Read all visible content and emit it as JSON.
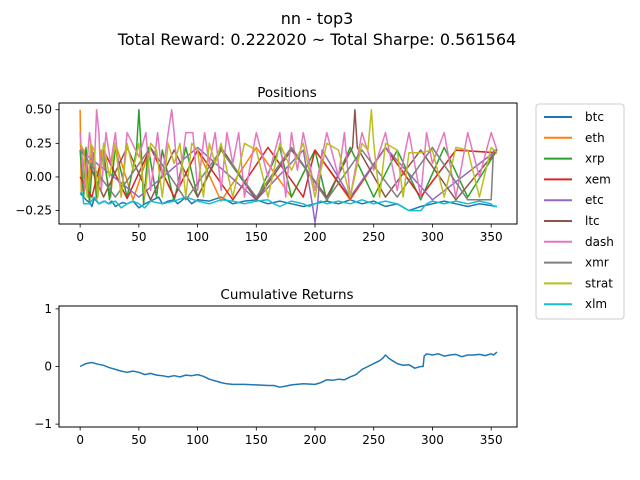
{
  "figure": {
    "title_line1": "nn - top3",
    "title_line2": "Total Reward: 0.222020 ~ Total Sharpe: 0.561564"
  },
  "chart_data": [
    {
      "type": "line",
      "title": "Positions",
      "xlabel": "",
      "ylabel": "",
      "xlim": [
        -18,
        372
      ],
      "ylim": [
        -0.35,
        0.55
      ],
      "xticks": [
        0,
        50,
        100,
        150,
        200,
        250,
        300,
        350
      ],
      "yticks": [
        -0.25,
        0.0,
        0.25,
        0.5
      ],
      "ytick_labels": [
        "−0.25",
        "0.00",
        "0.25",
        "0.50"
      ],
      "grid": false,
      "legend": "outside-right",
      "series": [
        {
          "name": "btc",
          "color": "#1f77b4",
          "x": [
            0,
            2,
            5,
            9,
            10,
            12,
            16,
            21,
            24,
            27,
            30,
            36,
            40,
            45,
            50,
            55,
            60,
            67,
            70,
            75,
            80,
            83,
            86,
            90,
            95,
            100,
            110,
            120,
            130,
            140,
            150,
            160,
            170,
            180,
            190,
            200,
            210,
            220,
            230,
            240,
            250,
            260,
            270,
            280,
            290,
            300,
            310,
            320,
            330,
            340,
            355
          ],
          "y": [
            -0.12,
            -0.14,
            -0.17,
            -0.2,
            -0.22,
            -0.16,
            -0.2,
            -0.18,
            -0.2,
            -0.18,
            -0.22,
            -0.19,
            -0.2,
            -0.18,
            -0.23,
            -0.2,
            -0.18,
            -0.15,
            -0.2,
            -0.18,
            -0.17,
            -0.2,
            -0.18,
            -0.15,
            -0.2,
            -0.17,
            -0.18,
            -0.15,
            -0.2,
            -0.18,
            -0.17,
            -0.2,
            -0.18,
            -0.2,
            -0.22,
            -0.2,
            -0.18,
            -0.2,
            -0.17,
            -0.2,
            -0.18,
            -0.22,
            -0.2,
            -0.25,
            -0.22,
            -0.2,
            -0.18,
            -0.2,
            -0.22,
            -0.2,
            -0.22
          ]
        },
        {
          "name": "eth",
          "color": "#ff7f0e",
          "x": [
            0,
            1,
            4,
            7,
            10,
            14,
            18,
            26,
            30,
            45,
            60,
            80,
            100,
            120,
            150,
            180,
            200,
            230,
            260,
            290,
            320,
            355
          ],
          "y": [
            0.5,
            -0.12,
            0.2,
            -0.15,
            0.22,
            -0.18,
            0.2,
            -0.15,
            0.25,
            -0.17,
            0.22,
            -0.15,
            0.2,
            -0.18,
            0.22,
            -0.15,
            0.2,
            -0.17,
            0.22,
            -0.15,
            0.2,
            0.18
          ]
        },
        {
          "name": "xrp",
          "color": "#2ca02c",
          "x": [
            0,
            3,
            5,
            8,
            11,
            14,
            20,
            25,
            30,
            40,
            48,
            50,
            52,
            54,
            58,
            65,
            70,
            80,
            90,
            100,
            120,
            150,
            170,
            180,
            200,
            210,
            230,
            250,
            270,
            290,
            310,
            330,
            355
          ],
          "y": [
            0.2,
            -0.15,
            0.22,
            -0.2,
            0.18,
            -0.15,
            0.2,
            -0.17,
            0.22,
            -0.15,
            0.2,
            0.5,
            0.2,
            -0.2,
            0.22,
            -0.15,
            0.2,
            -0.18,
            0.22,
            -0.15,
            0.2,
            -0.17,
            0.22,
            -0.15,
            0.2,
            -0.18,
            0.22,
            -0.15,
            0.2,
            -0.17,
            0.22,
            -0.15,
            0.2
          ]
        },
        {
          "name": "xem",
          "color": "#d62728",
          "x": [
            0,
            10,
            20,
            40,
            60,
            80,
            100,
            130,
            160,
            190,
            200,
            230,
            260,
            290,
            320,
            355
          ],
          "y": [
            0.0,
            -0.15,
            0.2,
            -0.16,
            0.22,
            -0.15,
            0.2,
            -0.17,
            0.22,
            -0.15,
            0.2,
            -0.16,
            0.22,
            -0.15,
            0.2,
            0.18
          ]
        },
        {
          "name": "etc",
          "color": "#9467bd",
          "x": [
            0,
            50,
            100,
            150,
            190,
            198,
            200,
            202,
            206,
            230,
            260,
            300,
            355
          ],
          "y": [
            0.2,
            -0.15,
            0.22,
            -0.17,
            0.2,
            -0.22,
            -0.34,
            -0.22,
            0.2,
            -0.15,
            0.22,
            -0.17,
            0.2
          ]
        },
        {
          "name": "ltc",
          "color": "#8c564b",
          "x": [
            0,
            20,
            40,
            60,
            80,
            100,
            120,
            150,
            180,
            210,
            232,
            234,
            236,
            260,
            290,
            320,
            355
          ],
          "y": [
            0.25,
            -0.15,
            0.22,
            -0.17,
            0.2,
            -0.15,
            0.22,
            -0.17,
            0.2,
            -0.15,
            0.22,
            0.5,
            0.22,
            -0.15,
            0.2,
            -0.17,
            0.2
          ]
        },
        {
          "name": "dash",
          "color": "#e377c2",
          "x": [
            0,
            4,
            8,
            12,
            14,
            16,
            18,
            22,
            26,
            30,
            35,
            40,
            50,
            56,
            60,
            66,
            70,
            75,
            78,
            80,
            84,
            90,
            96,
            100,
            106,
            110,
            115,
            120,
            125,
            130,
            135,
            140,
            150,
            160,
            170,
            175,
            180,
            185,
            190,
            200,
            210,
            220,
            225,
            230,
            240,
            250,
            260,
            270,
            280,
            290,
            295,
            300,
            310,
            320,
            330,
            340,
            350,
            355
          ],
          "y": [
            0.33,
            -0.1,
            0.33,
            0.05,
            0.5,
            0.33,
            -0.1,
            0.33,
            0.1,
            0.33,
            -0.15,
            0.33,
            0.15,
            0.33,
            -0.1,
            0.33,
            0.0,
            0.33,
            0.5,
            0.33,
            -0.1,
            0.33,
            0.33,
            -0.1,
            0.33,
            0.1,
            0.33,
            -0.1,
            0.33,
            0.1,
            0.33,
            -0.15,
            0.33,
            0.0,
            0.33,
            -0.15,
            0.33,
            0.05,
            0.33,
            -0.1,
            0.33,
            0.0,
            0.33,
            -0.15,
            0.33,
            0.05,
            0.33,
            -0.1,
            0.33,
            -0.15,
            0.33,
            0.1,
            0.33,
            -0.15,
            0.33,
            0.0,
            0.33,
            0.2
          ]
        },
        {
          "name": "xmr",
          "color": "#7f7f7f",
          "x": [
            0,
            30,
            60,
            90,
            120,
            150,
            180,
            210,
            240,
            270,
            300,
            330,
            350,
            352,
            355
          ],
          "y": [
            0.2,
            -0.15,
            0.22,
            -0.17,
            0.2,
            -0.15,
            0.22,
            -0.17,
            0.2,
            -0.15,
            0.22,
            -0.17,
            -0.17,
            0.2,
            0.2
          ]
        },
        {
          "name": "strat",
          "color": "#bcbd22",
          "x": [
            0,
            3,
            6,
            9,
            12,
            15,
            20,
            25,
            30,
            35,
            40,
            45,
            50,
            55,
            60,
            65,
            70,
            75,
            80,
            85,
            90,
            95,
            100,
            105,
            110,
            115,
            120,
            130,
            140,
            150,
            160,
            170,
            180,
            190,
            200,
            210,
            220,
            230,
            240,
            245,
            248,
            250,
            255,
            260,
            270,
            275,
            280,
            290,
            300,
            310,
            320,
            330,
            340,
            350,
            355
          ],
          "y": [
            0.25,
            0.2,
            -0.15,
            0.25,
            0.2,
            -0.15,
            0.25,
            0.0,
            0.25,
            -0.15,
            0.25,
            0.05,
            0.25,
            -0.15,
            0.25,
            0.2,
            -0.15,
            0.25,
            0.1,
            0.25,
            -0.15,
            0.25,
            0.2,
            -0.15,
            0.25,
            0.1,
            0.25,
            -0.15,
            0.25,
            0.2,
            -0.15,
            0.25,
            0.05,
            0.25,
            -0.15,
            0.25,
            0.2,
            -0.15,
            0.25,
            0.2,
            0.5,
            0.25,
            -0.15,
            0.25,
            0.2,
            -0.15,
            0.18,
            0.18,
            0.2,
            -0.15,
            0.22,
            0.2,
            -0.15,
            0.22,
            0.18
          ]
        },
        {
          "name": "xlm",
          "color": "#17becf",
          "x": [
            0,
            2,
            3,
            8,
            12,
            16,
            20,
            25,
            30,
            35,
            40,
            45,
            50,
            55,
            60,
            70,
            80,
            90,
            100,
            110,
            120,
            130,
            140,
            150,
            160,
            165,
            170,
            180,
            190,
            195,
            200,
            205,
            210,
            220,
            230,
            240,
            250,
            260,
            270,
            280,
            290,
            295,
            300,
            310,
            320,
            330,
            340,
            350,
            352,
            355
          ],
          "y": [
            -0.12,
            -0.12,
            -0.2,
            -0.2,
            -0.15,
            -0.2,
            -0.18,
            -0.2,
            -0.18,
            -0.23,
            -0.2,
            -0.18,
            -0.2,
            -0.23,
            -0.18,
            -0.2,
            -0.18,
            -0.15,
            -0.18,
            -0.2,
            -0.17,
            -0.18,
            -0.2,
            -0.18,
            -0.17,
            -0.2,
            -0.22,
            -0.18,
            -0.2,
            -0.22,
            -0.2,
            -0.18,
            -0.2,
            -0.18,
            -0.2,
            -0.17,
            -0.2,
            -0.18,
            -0.2,
            -0.25,
            -0.25,
            -0.2,
            -0.18,
            -0.2,
            -0.18,
            -0.2,
            -0.18,
            -0.2,
            -0.22,
            -0.22
          ]
        }
      ]
    },
    {
      "type": "line",
      "title": "Cumulative Returns",
      "xlabel": "",
      "ylabel": "",
      "xlim": [
        -18,
        372
      ],
      "ylim": [
        -1.05,
        1.05
      ],
      "xticks": [
        0,
        50,
        100,
        150,
        200,
        250,
        300,
        350
      ],
      "yticks": [
        -1,
        0,
        1
      ],
      "ytick_labels": [
        "−1",
        "0",
        "1"
      ],
      "grid": false,
      "series": [
        {
          "name": "",
          "color": "#1f77b4",
          "x": [
            0,
            5,
            10,
            15,
            20,
            25,
            30,
            35,
            40,
            45,
            50,
            55,
            60,
            65,
            70,
            75,
            80,
            85,
            90,
            95,
            100,
            105,
            110,
            115,
            120,
            125,
            130,
            140,
            150,
            160,
            165,
            170,
            175,
            180,
            190,
            200,
            205,
            210,
            215,
            220,
            225,
            230,
            235,
            240,
            245,
            250,
            255,
            258,
            260,
            263,
            266,
            270,
            275,
            280,
            285,
            290,
            292,
            293,
            295,
            300,
            305,
            310,
            315,
            320,
            325,
            330,
            335,
            340,
            345,
            350,
            352,
            355
          ],
          "y": [
            0.0,
            0.05,
            0.07,
            0.04,
            0.02,
            -0.02,
            -0.05,
            -0.08,
            -0.1,
            -0.08,
            -0.1,
            -0.14,
            -0.12,
            -0.15,
            -0.16,
            -0.18,
            -0.16,
            -0.18,
            -0.15,
            -0.16,
            -0.14,
            -0.17,
            -0.22,
            -0.25,
            -0.28,
            -0.3,
            -0.31,
            -0.31,
            -0.32,
            -0.33,
            -0.33,
            -0.36,
            -0.34,
            -0.32,
            -0.3,
            -0.31,
            -0.28,
            -0.23,
            -0.24,
            -0.22,
            -0.23,
            -0.18,
            -0.14,
            -0.05,
            0.0,
            0.05,
            0.1,
            0.15,
            0.2,
            0.14,
            0.1,
            0.05,
            0.02,
            0.03,
            -0.03,
            0.0,
            0.0,
            0.18,
            0.22,
            0.2,
            0.22,
            0.18,
            0.2,
            0.21,
            0.17,
            0.2,
            0.2,
            0.21,
            0.19,
            0.22,
            0.2,
            0.25
          ]
        }
      ]
    }
  ]
}
